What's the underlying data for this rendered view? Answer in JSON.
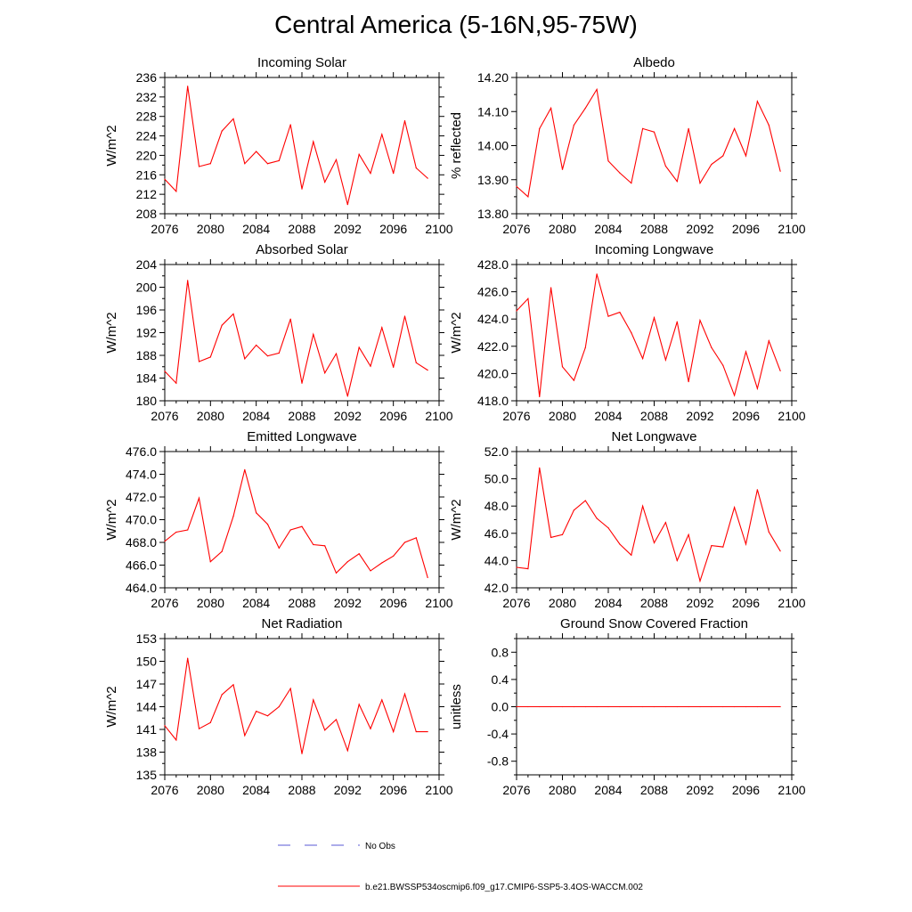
{
  "title": "Central America (5-16N,95-75W)",
  "chart_data": [
    {
      "type": "line",
      "title": "Incoming Solar",
      "xlabel": "",
      "ylabel": "W/m^2",
      "xlim": [
        2076,
        2100
      ],
      "ylim": [
        208,
        236
      ],
      "xticks": [
        2076,
        2080,
        2084,
        2088,
        2092,
        2096,
        2100
      ],
      "xtick_labels": [
        "2076",
        "2080",
        "2084",
        "2088",
        "2092",
        "2096",
        "2100"
      ],
      "yticks": [
        208,
        212,
        216,
        220,
        224,
        228,
        232,
        236
      ],
      "ytick_labels": [
        "208",
        "212",
        "216",
        "220",
        "224",
        "228",
        "232",
        "236"
      ],
      "series": [
        {
          "name": "b.e21.BWSSP534oscmip6.f09_g17.CMIP6-SSP5-3.4OS-WACCM.002",
          "color": "#ff0000",
          "x": [
            2076,
            2077,
            2078,
            2079,
            2080,
            2081,
            2082,
            2083,
            2084,
            2085,
            2086,
            2087,
            2088,
            2089,
            2090,
            2091,
            2092,
            2093,
            2094,
            2095,
            2096,
            2097,
            2098,
            2099
          ],
          "values": [
            215.1,
            212.6,
            234.2,
            217.7,
            218.3,
            225.0,
            227.5,
            218.3,
            220.8,
            218.3,
            218.9,
            226.3,
            213.1,
            222.8,
            214.5,
            219.1,
            209.9,
            220.2,
            216.3,
            224.3,
            216.3,
            227.1,
            217.4,
            215.3
          ]
        }
      ]
    },
    {
      "type": "line",
      "title": "Albedo",
      "xlabel": "",
      "ylabel": "% reflected",
      "xlim": [
        2076,
        2100
      ],
      "ylim": [
        13.8,
        14.2
      ],
      "xticks": [
        2076,
        2080,
        2084,
        2088,
        2092,
        2096,
        2100
      ],
      "xtick_labels": [
        "2076",
        "2080",
        "2084",
        "2088",
        "2092",
        "2096",
        "2100"
      ],
      "yticks": [
        13.8,
        13.9,
        14.0,
        14.1,
        14.2
      ],
      "ytick_labels": [
        "13.80",
        "13.90",
        "14.00",
        "14.10",
        "14.20"
      ],
      "series": [
        {
          "name": "b.e21.BWSSP534oscmip6.f09_g17.CMIP6-SSP5-3.4OS-WACCM.002",
          "color": "#ff0000",
          "x": [
            2076,
            2077,
            2078,
            2079,
            2080,
            2081,
            2082,
            2083,
            2084,
            2085,
            2086,
            2087,
            2088,
            2089,
            2090,
            2091,
            2092,
            2093,
            2094,
            2095,
            2096,
            2097,
            2098,
            2099
          ],
          "values": [
            13.88,
            13.85,
            14.05,
            14.11,
            13.93,
            14.06,
            14.11,
            14.165,
            13.955,
            13.92,
            13.89,
            14.05,
            14.04,
            13.94,
            13.895,
            14.05,
            13.89,
            13.945,
            13.97,
            14.05,
            13.97,
            14.13,
            14.06,
            13.925
          ]
        }
      ]
    },
    {
      "type": "line",
      "title": "Absorbed Solar",
      "xlabel": "",
      "ylabel": "W/m^2",
      "xlim": [
        2076,
        2100
      ],
      "ylim": [
        180,
        204
      ],
      "xticks": [
        2076,
        2080,
        2084,
        2088,
        2092,
        2096,
        2100
      ],
      "xtick_labels": [
        "2076",
        "2080",
        "2084",
        "2088",
        "2092",
        "2096",
        "2100"
      ],
      "yticks": [
        180,
        184,
        188,
        192,
        196,
        200,
        204
      ],
      "ytick_labels": [
        "180",
        "184",
        "188",
        "192",
        "196",
        "200",
        "204"
      ],
      "series": [
        {
          "name": "b.e21.BWSSP534oscmip6.f09_g17.CMIP6-SSP5-3.4OS-WACCM.002",
          "color": "#ff0000",
          "x": [
            2076,
            2077,
            2078,
            2079,
            2080,
            2081,
            2082,
            2083,
            2084,
            2085,
            2086,
            2087,
            2088,
            2089,
            2090,
            2091,
            2092,
            2093,
            2094,
            2095,
            2096,
            2097,
            2098,
            2099
          ],
          "values": [
            185.2,
            183.1,
            201.2,
            186.9,
            187.7,
            193.3,
            195.3,
            187.4,
            189.8,
            187.9,
            188.4,
            194.4,
            183.1,
            191.7,
            184.9,
            188.3,
            180.8,
            189.4,
            186.1,
            192.9,
            185.9,
            194.9,
            186.7,
            185.4
          ]
        }
      ]
    },
    {
      "type": "line",
      "title": "Incoming Longwave",
      "xlabel": "",
      "ylabel": "W/m^2",
      "xlim": [
        2076,
        2100
      ],
      "ylim": [
        418,
        428
      ],
      "xticks": [
        2076,
        2080,
        2084,
        2088,
        2092,
        2096,
        2100
      ],
      "xtick_labels": [
        "2076",
        "2080",
        "2084",
        "2088",
        "2092",
        "2096",
        "2100"
      ],
      "yticks": [
        418,
        420,
        422,
        424,
        426,
        428
      ],
      "ytick_labels": [
        "418.0",
        "420.0",
        "422.0",
        "424.0",
        "426.0",
        "428.0"
      ],
      "series": [
        {
          "name": "b.e21.BWSSP534oscmip6.f09_g17.CMIP6-SSP5-3.4OS-WACCM.002",
          "color": "#ff0000",
          "x": [
            2076,
            2077,
            2078,
            2079,
            2080,
            2081,
            2082,
            2083,
            2084,
            2085,
            2086,
            2087,
            2088,
            2089,
            2090,
            2091,
            2092,
            2093,
            2094,
            2095,
            2096,
            2097,
            2098,
            2099
          ],
          "values": [
            424.6,
            425.5,
            418.3,
            426.3,
            420.5,
            419.5,
            421.9,
            427.3,
            424.2,
            424.5,
            423.0,
            421.1,
            424.1,
            421.0,
            423.8,
            419.4,
            423.9,
            421.9,
            420.6,
            418.4,
            421.6,
            418.9,
            422.4,
            420.2
          ]
        }
      ]
    },
    {
      "type": "line",
      "title": "Emitted Longwave",
      "xlabel": "",
      "ylabel": "W/m^2",
      "xlim": [
        2076,
        2100
      ],
      "ylim": [
        464,
        476
      ],
      "xticks": [
        2076,
        2080,
        2084,
        2088,
        2092,
        2096,
        2100
      ],
      "xtick_labels": [
        "2076",
        "2080",
        "2084",
        "2088",
        "2092",
        "2096",
        "2100"
      ],
      "yticks": [
        464,
        466,
        468,
        470,
        472,
        474,
        476
      ],
      "ytick_labels": [
        "464.0",
        "466.0",
        "468.0",
        "470.0",
        "472.0",
        "474.0",
        "476.0"
      ],
      "series": [
        {
          "name": "b.e21.BWSSP534oscmip6.f09_g17.CMIP6-SSP5-3.4OS-WACCM.002",
          "color": "#ff0000",
          "x": [
            2076,
            2077,
            2078,
            2079,
            2080,
            2081,
            2082,
            2083,
            2084,
            2085,
            2086,
            2087,
            2088,
            2089,
            2090,
            2091,
            2092,
            2093,
            2094,
            2095,
            2096,
            2097,
            2098,
            2099
          ],
          "values": [
            468.1,
            468.9,
            469.1,
            471.9,
            466.3,
            467.2,
            470.3,
            474.4,
            470.6,
            469.6,
            467.5,
            469.1,
            469.4,
            467.8,
            467.7,
            465.3,
            466.3,
            467.0,
            465.5,
            466.2,
            466.8,
            468.0,
            468.4,
            464.9
          ]
        }
      ]
    },
    {
      "type": "line",
      "title": "Net Longwave",
      "xlabel": "",
      "ylabel": "W/m^2",
      "xlim": [
        2076,
        2100
      ],
      "ylim": [
        42,
        52
      ],
      "xticks": [
        2076,
        2080,
        2084,
        2088,
        2092,
        2096,
        2100
      ],
      "xtick_labels": [
        "2076",
        "2080",
        "2084",
        "2088",
        "2092",
        "2096",
        "2100"
      ],
      "yticks": [
        42,
        44,
        46,
        48,
        50,
        52
      ],
      "ytick_labels": [
        "42.0",
        "44.0",
        "46.0",
        "48.0",
        "50.0",
        "52.0"
      ],
      "series": [
        {
          "name": "b.e21.BWSSP534oscmip6.f09_g17.CMIP6-SSP5-3.4OS-WACCM.002",
          "color": "#ff0000",
          "x": [
            2076,
            2077,
            2078,
            2079,
            2080,
            2081,
            2082,
            2083,
            2084,
            2085,
            2086,
            2087,
            2088,
            2089,
            2090,
            2091,
            2092,
            2093,
            2094,
            2095,
            2096,
            2097,
            2098,
            2099
          ],
          "values": [
            43.5,
            43.4,
            50.8,
            45.7,
            45.9,
            47.7,
            48.4,
            47.1,
            46.4,
            45.2,
            44.4,
            48.0,
            45.3,
            46.8,
            44.0,
            45.9,
            42.5,
            45.1,
            45.0,
            47.9,
            45.2,
            49.2,
            46.1,
            44.7
          ]
        }
      ]
    },
    {
      "type": "line",
      "title": "Net Radiation",
      "xlabel": "",
      "ylabel": "W/m^2",
      "xlim": [
        2076,
        2100
      ],
      "ylim": [
        135,
        153
      ],
      "xticks": [
        2076,
        2080,
        2084,
        2088,
        2092,
        2096,
        2100
      ],
      "xtick_labels": [
        "2076",
        "2080",
        "2084",
        "2088",
        "2092",
        "2096",
        "2100"
      ],
      "yticks": [
        135,
        138,
        141,
        144,
        147,
        150,
        153
      ],
      "ytick_labels": [
        "135",
        "138",
        "141",
        "144",
        "147",
        "150",
        "153"
      ],
      "series": [
        {
          "name": "b.e21.BWSSP534oscmip6.f09_g17.CMIP6-SSP5-3.4OS-WACCM.002",
          "color": "#ff0000",
          "x": [
            2076,
            2077,
            2078,
            2079,
            2080,
            2081,
            2082,
            2083,
            2084,
            2085,
            2086,
            2087,
            2088,
            2089,
            2090,
            2091,
            2092,
            2093,
            2094,
            2095,
            2096,
            2097,
            2098,
            2099
          ],
          "values": [
            141.5,
            139.6,
            150.4,
            141.1,
            141.9,
            145.6,
            146.9,
            140.2,
            143.4,
            142.8,
            144.0,
            146.4,
            137.8,
            144.9,
            140.9,
            142.3,
            138.2,
            144.3,
            141.1,
            144.9,
            140.7,
            145.7,
            140.7,
            140.7
          ]
        }
      ]
    },
    {
      "type": "line",
      "title": "Ground Snow Covered Fraction",
      "xlabel": "",
      "ylabel": "unitless",
      "xlim": [
        2076,
        2100
      ],
      "ylim": [
        -1.0,
        1.0
      ],
      "xticks": [
        2076,
        2080,
        2084,
        2088,
        2092,
        2096,
        2100
      ],
      "xtick_labels": [
        "2076",
        "2080",
        "2084",
        "2088",
        "2092",
        "2096",
        "2100"
      ],
      "yticks": [
        -0.8,
        -0.4,
        0.0,
        0.4,
        0.8
      ],
      "ytick_labels": [
        "-0.8",
        "-0.4",
        "0.0",
        "0.4",
        "0.8"
      ],
      "series": [
        {
          "name": "b.e21.BWSSP534oscmip6.f09_g17.CMIP6-SSP5-3.4OS-WACCM.002",
          "color": "#ff0000",
          "x": [
            2076,
            2077,
            2078,
            2079,
            2080,
            2081,
            2082,
            2083,
            2084,
            2085,
            2086,
            2087,
            2088,
            2089,
            2090,
            2091,
            2092,
            2093,
            2094,
            2095,
            2096,
            2097,
            2098,
            2099
          ],
          "values": [
            0,
            0,
            0,
            0,
            0,
            0,
            0,
            0,
            0,
            0,
            0,
            0,
            0,
            0,
            0,
            0,
            0,
            0,
            0,
            0,
            0,
            0,
            0,
            0
          ]
        }
      ]
    }
  ],
  "legend": [
    {
      "label": "No Obs",
      "color": "#5a5ad6",
      "dashed": true
    },
    {
      "label": "b.e21.BWSSP534oscmip6.f09_g17.CMIP6-SSP5-3.4OS-WACCM.002",
      "color": "#ff0000",
      "dashed": false
    }
  ]
}
